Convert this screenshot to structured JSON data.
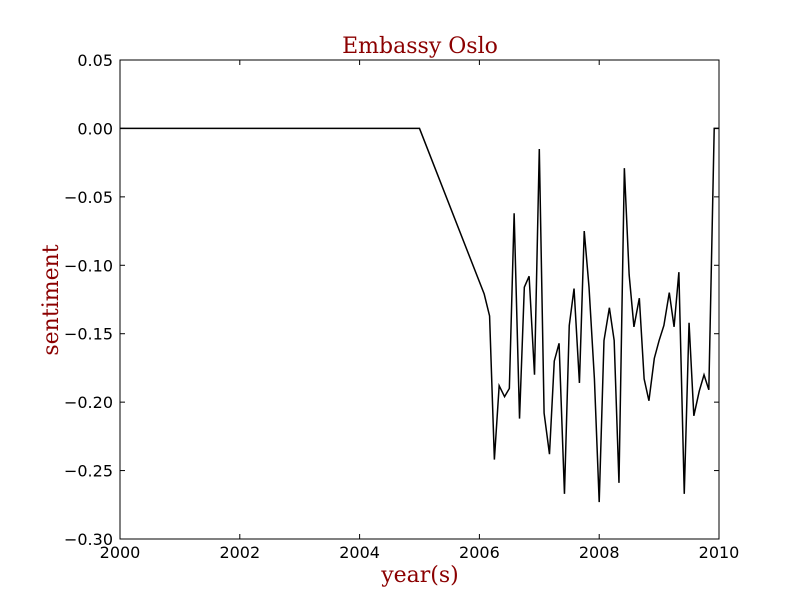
{
  "colors": {
    "title": "#8b0000",
    "line": "#000000",
    "axes": "#000000",
    "background": "#ffffff"
  },
  "chart_data": {
    "type": "line",
    "title": "Embassy Oslo",
    "xlabel": "year(s)",
    "ylabel": "sentiment",
    "xlim": [
      2000,
      2010
    ],
    "ylim": [
      -0.3,
      0.05
    ],
    "grid": false,
    "legend": "none",
    "xticks": [
      2000,
      2002,
      2004,
      2006,
      2008,
      2010
    ],
    "xtick_labels": [
      "2000",
      "2002",
      "2004",
      "2006",
      "2008",
      "2010"
    ],
    "yticks": [
      0.05,
      0.0,
      -0.05,
      -0.1,
      -0.15,
      -0.2,
      -0.25,
      -0.3
    ],
    "ytick_labels": [
      "0.05",
      "0.00",
      "−0.05",
      "−0.10",
      "−0.15",
      "−0.20",
      "−0.25",
      "−0.30"
    ],
    "series": [
      {
        "x": [
          2000.0,
          2005.0,
          2006.08,
          2006.17,
          2006.25,
          2006.33,
          2006.42,
          2006.5,
          2006.58,
          2006.67,
          2006.75,
          2006.83,
          2006.92,
          2007.0,
          2007.08,
          2007.17,
          2007.25,
          2007.33,
          2007.42,
          2007.5,
          2007.58,
          2007.67,
          2007.75,
          2007.83,
          2007.92,
          2008.0,
          2008.08,
          2008.17,
          2008.25,
          2008.33,
          2008.42,
          2008.5,
          2008.58,
          2008.67,
          2008.75,
          2008.83,
          2008.92,
          2009.0,
          2009.08,
          2009.17,
          2009.25,
          2009.33,
          2009.42,
          2009.5,
          2009.58,
          2009.67,
          2009.75,
          2009.83,
          2009.92,
          2010.0
        ],
        "y": [
          0.0,
          0.0,
          -0.121,
          -0.137,
          -0.242,
          -0.188,
          -0.196,
          -0.19,
          -0.062,
          -0.212,
          -0.116,
          -0.108,
          -0.18,
          -0.015,
          -0.208,
          -0.238,
          -0.17,
          -0.157,
          -0.267,
          -0.144,
          -0.117,
          -0.186,
          -0.075,
          -0.116,
          -0.183,
          -0.273,
          -0.155,
          -0.131,
          -0.155,
          -0.259,
          -0.029,
          -0.107,
          -0.145,
          -0.124,
          -0.183,
          -0.199,
          -0.168,
          -0.155,
          -0.144,
          -0.12,
          -0.145,
          -0.105,
          -0.267,
          -0.142,
          -0.21,
          -0.192,
          -0.18,
          -0.191,
          0.0,
          0.0
        ]
      }
    ]
  }
}
